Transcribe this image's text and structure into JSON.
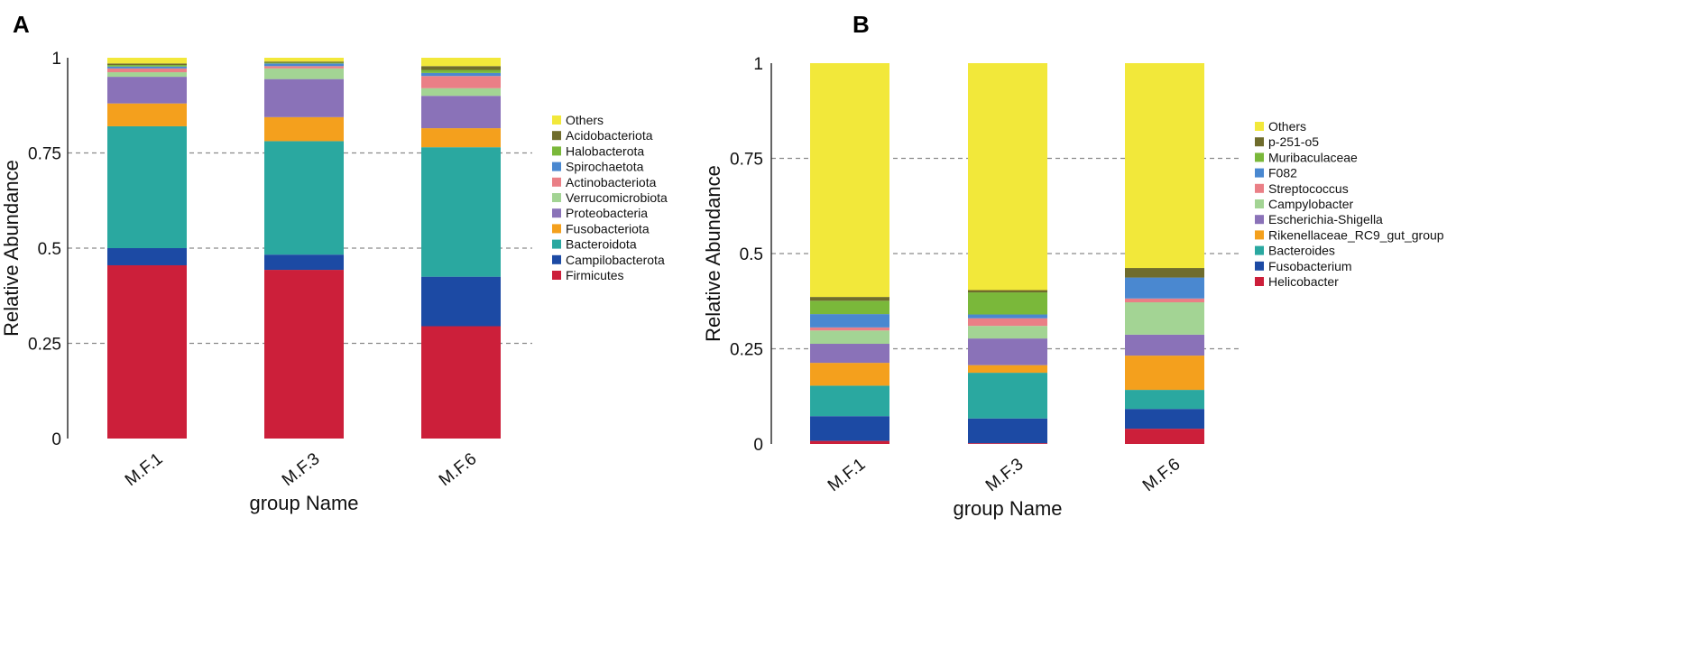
{
  "figure": {
    "panels": [
      "A",
      "B"
    ]
  },
  "chart_data": [
    {
      "panel": "A",
      "type": "bar",
      "stacked": true,
      "title": "",
      "xlabel": "group Name",
      "ylabel": "Relative Abundance",
      "ylim": [
        0,
        1
      ],
      "yticks": [
        0,
        0.25,
        0.5,
        0.75,
        1
      ],
      "ytick_labels": [
        "0",
        "0.25",
        "0.5",
        "0.75",
        "1"
      ],
      "grid": "dashed horizontal at 0.25, 0.5, 0.75",
      "legend_position": "right",
      "categories": [
        "M.F.1",
        "M.F.3",
        "M.F.6"
      ],
      "series": [
        {
          "name": "Firmicutes",
          "color": "#cc1f3a",
          "values": [
            0.455,
            0.443,
            0.295
          ]
        },
        {
          "name": "Campilobacterota",
          "color": "#1c4aa4",
          "values": [
            0.045,
            0.04,
            0.13
          ]
        },
        {
          "name": "Bacteroidota",
          "color": "#2aa8a0",
          "values": [
            0.32,
            0.298,
            0.34
          ]
        },
        {
          "name": "Fusobacteriota",
          "color": "#f4a01d",
          "values": [
            0.06,
            0.063,
            0.05
          ]
        },
        {
          "name": "Proteobacteria",
          "color": "#8a72b8",
          "values": [
            0.07,
            0.1,
            0.085
          ]
        },
        {
          "name": "Verrucomicrobiota",
          "color": "#a3d494",
          "values": [
            0.012,
            0.028,
            0.02
          ]
        },
        {
          "name": "Actinobacteriota",
          "color": "#ea7f86",
          "values": [
            0.01,
            0.006,
            0.032
          ]
        },
        {
          "name": "Spirochaetota",
          "color": "#4a88d0",
          "values": [
            0.005,
            0.007,
            0.008
          ]
        },
        {
          "name": "Halobacterota",
          "color": "#7ab83a",
          "values": [
            0.004,
            0.002,
            0.008
          ]
        },
        {
          "name": "Acidobacteriota",
          "color": "#6f6c2c",
          "values": [
            0.004,
            0.003,
            0.01
          ]
        },
        {
          "name": "Others",
          "color": "#f2e83a",
          "values": [
            0.015,
            0.01,
            0.022
          ]
        }
      ]
    },
    {
      "panel": "B",
      "type": "bar",
      "stacked": true,
      "title": "",
      "xlabel": "group Name",
      "ylabel": "Relative Abundance",
      "ylim": [
        0,
        1
      ],
      "yticks": [
        0,
        0.25,
        0.5,
        0.75,
        1
      ],
      "ytick_labels": [
        "0",
        "0.25",
        "0.5",
        "0.75",
        "1"
      ],
      "grid": "dashed horizontal at 0.25, 0.5, 0.75",
      "legend_position": "right",
      "categories": [
        "M.F.1",
        "M.F.3",
        "M.F.6"
      ],
      "series": [
        {
          "name": "Helicobacter",
          "color": "#cc1f3a",
          "values": [
            0.008,
            0.002,
            0.04
          ]
        },
        {
          "name": "Fusobacterium",
          "color": "#1c4aa4",
          "values": [
            0.065,
            0.065,
            0.052
          ]
        },
        {
          "name": "Bacteroides",
          "color": "#2aa8a0",
          "values": [
            0.08,
            0.12,
            0.05
          ]
        },
        {
          "name": "Rikenellaceae_RC9_gut_group",
          "color": "#f4a01d",
          "values": [
            0.06,
            0.02,
            0.09
          ]
        },
        {
          "name": "Escherichia-Shigella",
          "color": "#8a72b8",
          "values": [
            0.05,
            0.07,
            0.055
          ]
        },
        {
          "name": "Campylobacter",
          "color": "#a3d494",
          "values": [
            0.035,
            0.033,
            0.085
          ]
        },
        {
          "name": "Streptococcus",
          "color": "#ea7f86",
          "values": [
            0.008,
            0.02,
            0.01
          ]
        },
        {
          "name": "F082",
          "color": "#4a88d0",
          "values": [
            0.035,
            0.01,
            0.055
          ]
        },
        {
          "name": "Muribaculaceae",
          "color": "#7ab83a",
          "values": [
            0.035,
            0.058,
            0.0
          ]
        },
        {
          "name": "p-251-o5",
          "color": "#6f6c2c",
          "values": [
            0.01,
            0.006,
            0.025
          ]
        },
        {
          "name": "Others",
          "color": "#f2e83a",
          "values": [
            0.614,
            0.596,
            0.538
          ]
        }
      ]
    }
  ]
}
